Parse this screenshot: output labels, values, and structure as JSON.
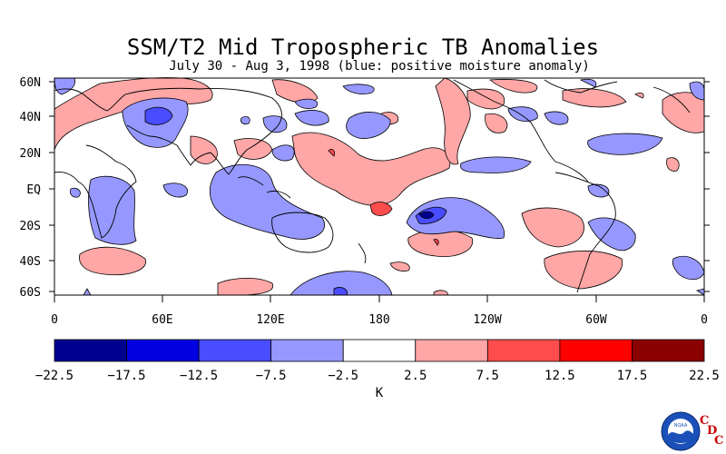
{
  "title": "SSM/T2 Mid Tropospheric TB Anomalies",
  "subtitle": "July 30 - Aug 3, 1998 (blue: positive moisture anomaly)",
  "map": {
    "lat_labels": [
      "60N",
      "40N",
      "20N",
      "EQ",
      "20S",
      "40S",
      "60S"
    ],
    "lon_labels": [
      "0",
      "60E",
      "120E",
      "180",
      "120W",
      "60W",
      "0"
    ]
  },
  "colorbar": {
    "unit": "K",
    "ticks": [
      "-22.5",
      "-17.5",
      "-12.5",
      "-7.5",
      "-2.5",
      "2.5",
      "7.5",
      "12.5",
      "17.5",
      "22.5"
    ],
    "colors": [
      "#00008f",
      "#0000e0",
      "#4a4cff",
      "#9698ff",
      "#ffffff",
      "#ffa6a6",
      "#ff4c4c",
      "#ff0000",
      "#8b0000"
    ]
  },
  "logo": {
    "agency": "NOAA",
    "letters": [
      "C",
      "D",
      "C"
    ]
  }
}
